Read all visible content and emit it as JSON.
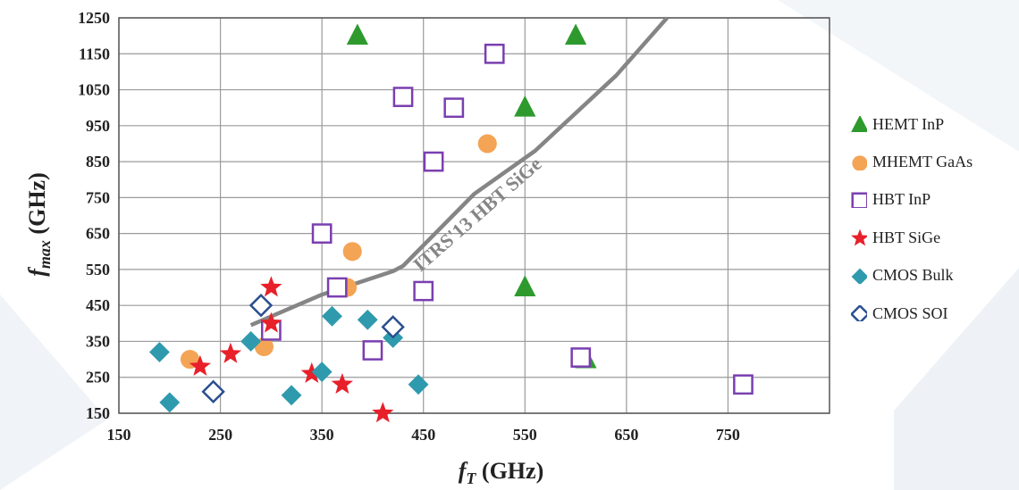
{
  "chart_data": {
    "type": "scatter",
    "xlabel": {
      "main": "f",
      "sub": "T",
      "unit": " (GHz)"
    },
    "ylabel": {
      "main": "f",
      "sub": "max",
      "unit": " (GHz)"
    },
    "xlim": [
      150,
      850
    ],
    "ylim": [
      150,
      1250
    ],
    "x_ticks": [
      150,
      250,
      350,
      450,
      550,
      650,
      750
    ],
    "y_ticks": [
      150,
      250,
      350,
      450,
      550,
      650,
      750,
      850,
      950,
      1050,
      1150,
      1250
    ],
    "grid": true,
    "legend_position": "right",
    "series": [
      {
        "name": "HEMT InP",
        "marker": "triangle-up",
        "color": "#2e9a2e",
        "filled": true,
        "points": [
          [
            385,
            1200
          ],
          [
            600,
            1200
          ],
          [
            550,
            1000
          ],
          [
            550,
            500
          ],
          [
            610,
            300
          ]
        ]
      },
      {
        "name": "MHEMT GaAs",
        "marker": "circle",
        "color": "#f4a455",
        "filled": true,
        "points": [
          [
            220,
            300
          ],
          [
            293,
            335
          ],
          [
            375,
            500
          ],
          [
            380,
            600
          ],
          [
            513,
            900
          ]
        ]
      },
      {
        "name": "HBT InP",
        "marker": "square",
        "color": "#7a3fb0",
        "filled": false,
        "points": [
          [
            300,
            380
          ],
          [
            350,
            650
          ],
          [
            365,
            500
          ],
          [
            400,
            325
          ],
          [
            430,
            1030
          ],
          [
            450,
            490
          ],
          [
            460,
            850
          ],
          [
            480,
            1000
          ],
          [
            520,
            1150
          ],
          [
            605,
            305
          ],
          [
            765,
            230
          ]
        ]
      },
      {
        "name": "HBT SiGe",
        "marker": "star",
        "color": "#e8202a",
        "filled": true,
        "points": [
          [
            230,
            280
          ],
          [
            260,
            315
          ],
          [
            300,
            500
          ],
          [
            300,
            400
          ],
          [
            340,
            260
          ],
          [
            370,
            230
          ],
          [
            410,
            150
          ]
        ]
      },
      {
        "name": "CMOS Bulk",
        "marker": "diamond",
        "color": "#2f9aae",
        "filled": true,
        "points": [
          [
            190,
            320
          ],
          [
            200,
            180
          ],
          [
            280,
            350
          ],
          [
            320,
            200
          ],
          [
            350,
            265
          ],
          [
            360,
            420
          ],
          [
            395,
            410
          ],
          [
            420,
            360
          ],
          [
            445,
            230
          ]
        ]
      },
      {
        "name": "CMOS SOI",
        "marker": "diamond",
        "color": "#2a4f8f",
        "filled": false,
        "points": [
          [
            243,
            210
          ],
          [
            290,
            450
          ],
          [
            420,
            390
          ]
        ]
      }
    ],
    "trend_line": {
      "label": "ITRS'13 HBT SiGe",
      "color": "#858585",
      "points": [
        [
          280,
          395
        ],
        [
          350,
          480
        ],
        [
          420,
          545
        ],
        [
          430,
          560
        ],
        [
          500,
          760
        ],
        [
          560,
          880
        ],
        [
          640,
          1090
        ],
        [
          690,
          1250
        ]
      ]
    }
  }
}
